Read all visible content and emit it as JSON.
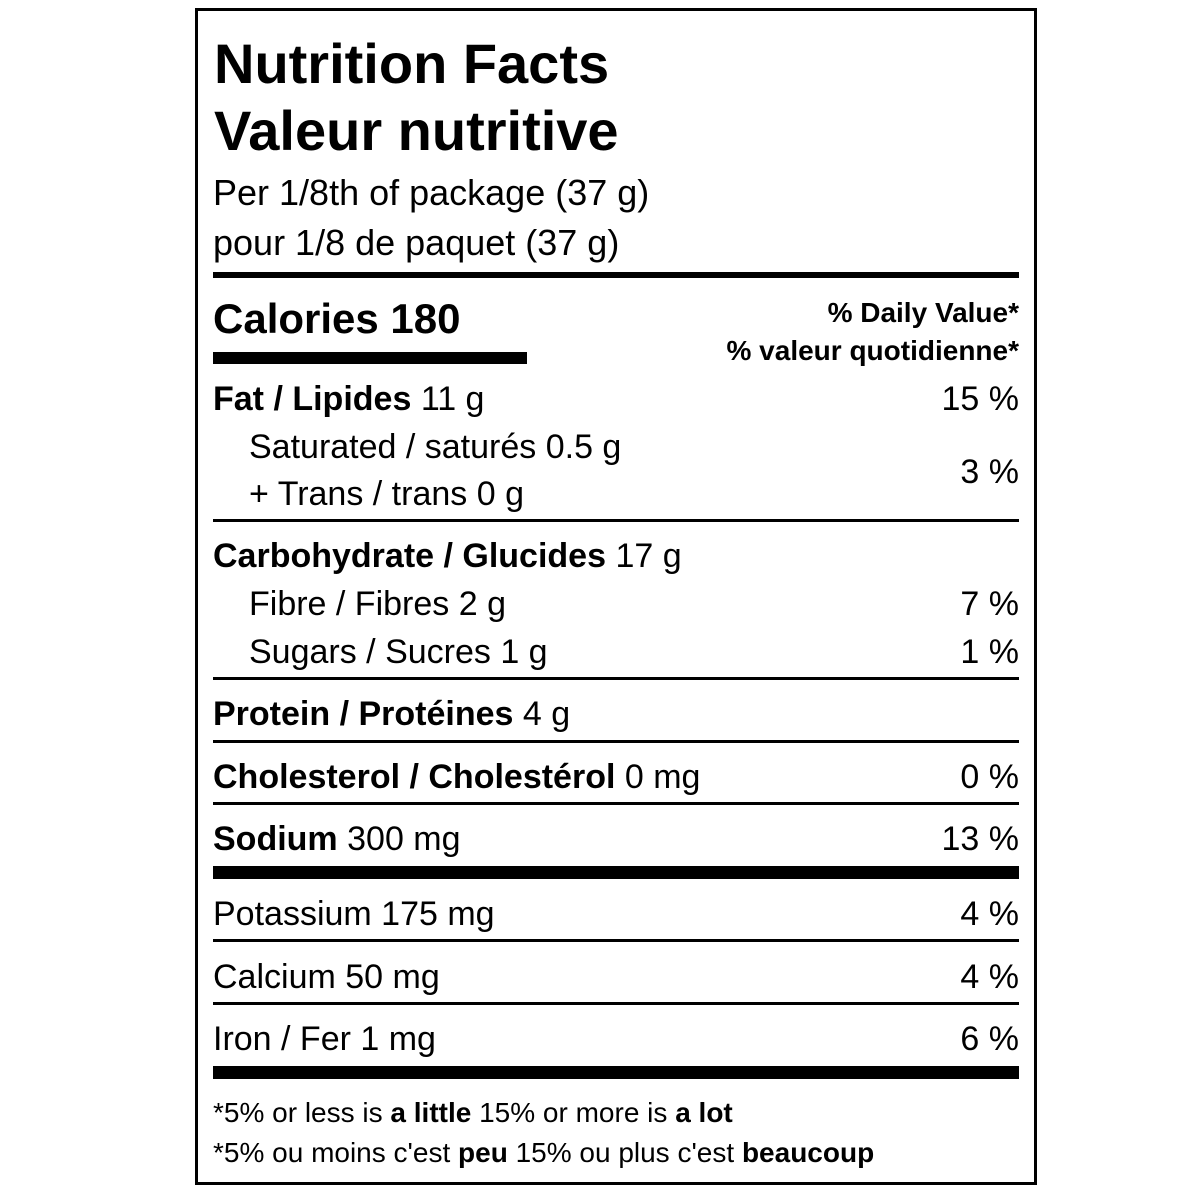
{
  "title_en": "Nutrition Facts",
  "title_fr": "Valeur nutritive",
  "serving_en": "Per 1/8th of package (37 g)",
  "serving_fr": "pour 1/8 de paquet (37 g)",
  "calories": {
    "label": "Calories",
    "value": "180"
  },
  "daily_value_en": "% Daily Value*",
  "daily_value_fr": "% valeur quotidienne*",
  "nutrients": {
    "fat": {
      "label": "Fat / Lipides",
      "amount": "11 g",
      "dv": "15 %"
    },
    "saturated": {
      "label": "Saturated / saturés 0.5 g"
    },
    "trans": {
      "label": "+ Trans / trans 0 g"
    },
    "sat_trans_dv": "3 %",
    "carb": {
      "label": "Carbohydrate / Glucides",
      "amount": "17 g"
    },
    "fibre": {
      "label": "Fibre / Fibres 2 g",
      "dv": "7 %"
    },
    "sugars": {
      "label": "Sugars / Sucres 1 g",
      "dv": "1 %"
    },
    "protein": {
      "label": "Protein / Protéines",
      "amount": "4 g"
    },
    "cholesterol": {
      "label": "Cholesterol / Cholestérol",
      "amount": "0 mg",
      "dv": "0 %"
    },
    "sodium": {
      "label": "Sodium",
      "amount": "300 mg",
      "dv": "13 %"
    },
    "potassium": {
      "label": "Potassium 175 mg",
      "dv": "4 %"
    },
    "calcium": {
      "label": "Calcium 50 mg",
      "dv": "4 %"
    },
    "iron": {
      "label": "Iron / Fer 1 mg",
      "dv": "6 %"
    }
  },
  "footnote_en": {
    "p1": "*5% or less is ",
    "b1": "a little",
    "p2": " 15% or more is ",
    "b2": "a lot"
  },
  "footnote_fr": {
    "p1": "*5% ou moins c'est ",
    "b1": "peu",
    "p2": " 15% ou plus c'est ",
    "b2": "beaucoup"
  }
}
